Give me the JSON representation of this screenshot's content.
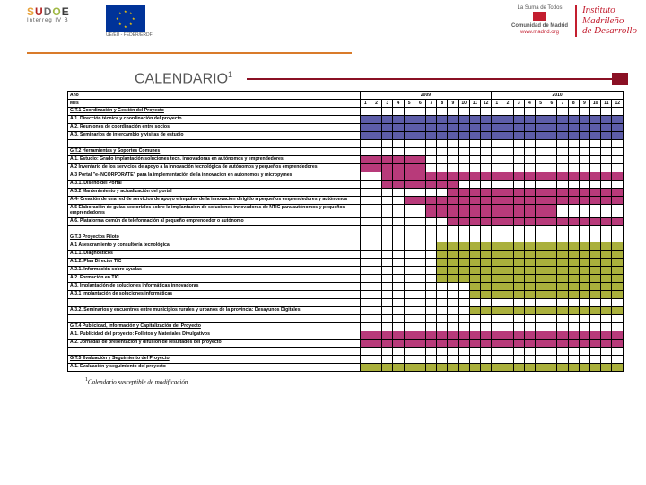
{
  "header": {
    "sudoe_letters": [
      "S",
      "U",
      "D",
      "O",
      "E"
    ],
    "sudoe_sub": "Interreg IV B",
    "eu_label": "UE/EU - FEDER/ERDF",
    "madrid_top": "La Suma de Todos",
    "madrid_mid": "Comunidad de Madrid",
    "madrid_url": "www.madrid.org",
    "imd_l1": "Instituto",
    "imd_l2": "Madrileño",
    "imd_l3": "de Desarrollo"
  },
  "title": "CALENDARIO",
  "title_sup": "1",
  "years": [
    "2009",
    "2010"
  ],
  "months": [
    "1",
    "2",
    "3",
    "4",
    "5",
    "6",
    "7",
    "8",
    "9",
    "10",
    "11",
    "12",
    "1",
    "2",
    "3",
    "4",
    "5",
    "6",
    "7",
    "8",
    "9",
    "10",
    "11",
    "12"
  ],
  "row_year": "Año",
  "row_month": "Mes",
  "rows": [
    {
      "label": "G.T.1 Coordinación y Gestión del Proyecto",
      "type": "section"
    },
    {
      "label": "A.1. Dirección técnica y coordinación del proyecto",
      "fill": "c-purple",
      "start": 0,
      "end": 23
    },
    {
      "label": "A.2. Reuniones de coordinación entre socios",
      "fill": "c-purple",
      "start": 0,
      "end": 23
    },
    {
      "label": "A.3. Seminarios de intercambio y visitas de estudio",
      "fill": "c-purple",
      "start": 0,
      "end": 23
    },
    {
      "label": "",
      "type": "gap"
    },
    {
      "label": "G.T.2 Herramientas y Soportes Comunes",
      "type": "section"
    },
    {
      "label": "A.1. Estudio: Grado implantación soluciones tecn. innovadoras en autónomos y emprendedores",
      "fill": "c-magenta",
      "start": 0,
      "end": 5
    },
    {
      "label": "A.2 Inventario de los servicios de apoyo a la innovación tecnológica de autónomos y pequeños emprendedores",
      "fill": "c-magenta",
      "start": 0,
      "end": 5
    },
    {
      "label": "A.3 Portal \"e-INCORPORATE\" para la implementación de la innovacion en autonomos y micropymes",
      "fill": "c-magenta",
      "start": 2,
      "end": 23
    },
    {
      "label": "A.3.1. Diseño del Portal",
      "fill": "c-magenta",
      "start": 2,
      "end": 8
    },
    {
      "label": "A.3.2 Mantenimiento y actualización del portal",
      "fill": "c-magenta",
      "start": 8,
      "end": 23
    },
    {
      "label": "A.4-  Creación de una red de servicios de apoyo e impulso de la innovacion dirigido a pequeños emprendedores y autónomos",
      "fill": "c-magenta",
      "start": 4,
      "end": 23
    },
    {
      "label": "A.5  Elaboración de guías sectoriales sobre la implantación de soluciones innovadoras de NTIC para autónomos y pequeños emprendedores",
      "fill": "c-magenta",
      "start": 6,
      "end": 17
    },
    {
      "label": "A.6.  Plataforma común de teleformación al pequeño emprendedor o autónomo",
      "fill": "c-magenta",
      "start": 8,
      "end": 23
    },
    {
      "label": "",
      "type": "gap"
    },
    {
      "label": "G.T.3 Proyectos Piloto",
      "type": "section"
    },
    {
      "label": "A.1 Asesoramiento y consultoría tecnológica",
      "fill": "c-olive",
      "start": 7,
      "end": 23
    },
    {
      "label": "A.1.1. Diagnósticos",
      "fill": "c-olive",
      "start": 7,
      "end": 23
    },
    {
      "label": "A.1.2. Plan Director TIC",
      "fill": "c-olive",
      "start": 7,
      "end": 23
    },
    {
      "label": "A.2.1. Información sobre ayudas",
      "fill": "c-olive",
      "start": 7,
      "end": 23
    },
    {
      "label": "A.2. Formación en TIC",
      "fill": "c-olive",
      "start": 7,
      "end": 23
    },
    {
      "label": "A.3. Implantación de soluciones informáticas innovadoras",
      "fill": "c-olive",
      "start": 10,
      "end": 23
    },
    {
      "label": "A.3.1 Implantación de soluciones informáticas",
      "fill": "c-olive",
      "start": 10,
      "end": 23
    },
    {
      "label": "",
      "type": "gap"
    },
    {
      "label": "A.3.2. Seminarios y encuentros entre municipios rurales y urbanos de la provincia: Desayunos Digitales",
      "fill": "c-olive",
      "start": 10,
      "end": 23
    },
    {
      "label": "",
      "type": "gap"
    },
    {
      "label": "G.T.4 Publicidad, Información y Capitalización del Proyecto",
      "type": "section"
    },
    {
      "label": "A.1.  Publicidad del proyecto: Folletos y Materiales Divulgativos",
      "fill": "c-magenta",
      "start": 0,
      "end": 23
    },
    {
      "label": "A.2. Jornadas de presentación y difusión de resultados del proyecto",
      "fill": "c-magenta",
      "start": 0,
      "end": 23
    },
    {
      "label": "",
      "type": "gap"
    },
    {
      "label": "G.T.5 Evaluación y Seguimiento del Proyecto",
      "type": "section"
    },
    {
      "label": "A.1.  Evaluación y seguimiento del proyecto",
      "fill": "c-olive",
      "start": 0,
      "end": 23
    }
  ],
  "footnote": "Calendario susceptible de modificación",
  "footnote_sup": "1",
  "colors": {
    "purple": "#5d5da8",
    "magenta": "#b83a7a",
    "olive": "#aab03c"
  }
}
